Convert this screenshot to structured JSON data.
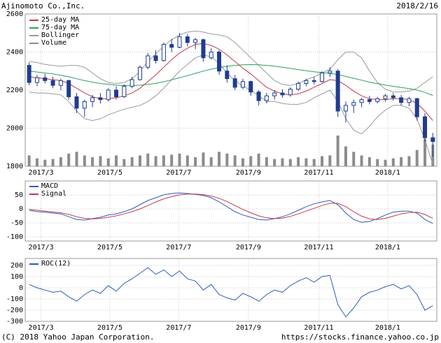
{
  "header": {
    "title": "Ajinomoto Co.,Inc.",
    "date": "2018/2/16"
  },
  "footer": {
    "copyright": "(C) 2018 Yahoo Japan Corporation.",
    "url": "https://stocks.finance.yahoo.co.jp"
  },
  "colors": {
    "candle": "#1e3d8f",
    "ma25": "#c03a4a",
    "ma75": "#2aa05f",
    "bollinger": "#999999",
    "volume": "#8c8c8c",
    "macd": "#2e5cb8",
    "signal": "#c03a4a",
    "roc": "#2e5cb8",
    "grid": "#c8c8c8",
    "border": "#999999"
  },
  "chart_data": [
    {
      "type": "candlestick",
      "panel": "price",
      "interval": "weekly",
      "ylim": [
        1800,
        2600
      ],
      "y_ticks": [
        2600,
        2400,
        2200,
        2000,
        1800
      ],
      "x_ticks": [
        {
          "label": "2017/3",
          "pos": 1.5
        },
        {
          "label": "2017/5",
          "pos": 10.2
        },
        {
          "label": "2017/7",
          "pos": 18.9
        },
        {
          "label": "2017/9",
          "pos": 27.7
        },
        {
          "label": "2017/11",
          "pos": 36.6
        },
        {
          "label": "2018/1",
          "pos": 45.3
        }
      ],
      "legend": [
        "25-day MA",
        "75-day MA",
        "Bollinger",
        "Volume"
      ],
      "candles": [
        [
          2330,
          2345,
          2225,
          2240
        ],
        [
          2240,
          2280,
          2220,
          2265
        ],
        [
          2265,
          2285,
          2235,
          2250
        ],
        [
          2250,
          2270,
          2210,
          2225
        ],
        [
          2225,
          2260,
          2200,
          2250
        ],
        [
          2250,
          2255,
          2150,
          2165
        ],
        [
          2165,
          2185,
          2080,
          2105
        ],
        [
          2105,
          2150,
          2060,
          2140
        ],
        [
          2140,
          2175,
          2110,
          2160
        ],
        [
          2160,
          2185,
          2130,
          2150
        ],
        [
          2150,
          2210,
          2140,
          2200
        ],
        [
          2200,
          2220,
          2150,
          2165
        ],
        [
          2165,
          2230,
          2160,
          2220
        ],
        [
          2220,
          2270,
          2210,
          2255
        ],
        [
          2255,
          2330,
          2250,
          2320
        ],
        [
          2320,
          2395,
          2310,
          2380
        ],
        [
          2380,
          2410,
          2340,
          2355
        ],
        [
          2355,
          2450,
          2350,
          2440
        ],
        [
          2440,
          2470,
          2400,
          2425
        ],
        [
          2425,
          2500,
          2420,
          2480
        ],
        [
          2480,
          2495,
          2430,
          2450
        ],
        [
          2450,
          2475,
          2415,
          2465
        ],
        [
          2465,
          2470,
          2350,
          2370
        ],
        [
          2370,
          2420,
          2360,
          2400
        ],
        [
          2400,
          2410,
          2280,
          2300
        ],
        [
          2300,
          2330,
          2240,
          2260
        ],
        [
          2260,
          2280,
          2200,
          2215
        ],
        [
          2215,
          2260,
          2205,
          2245
        ],
        [
          2245,
          2250,
          2170,
          2190
        ],
        [
          2190,
          2200,
          2120,
          2145
        ],
        [
          2145,
          2185,
          2130,
          2170
        ],
        [
          2170,
          2200,
          2150,
          2185
        ],
        [
          2185,
          2205,
          2160,
          2175
        ],
        [
          2175,
          2215,
          2165,
          2205
        ],
        [
          2205,
          2245,
          2195,
          2235
        ],
        [
          2235,
          2260,
          2220,
          2250
        ],
        [
          2250,
          2270,
          2230,
          2245
        ],
        [
          2245,
          2300,
          2240,
          2290
        ],
        [
          2290,
          2320,
          2270,
          2300
        ],
        [
          2300,
          2310,
          2060,
          2090
        ],
        [
          2090,
          2140,
          2030,
          2120
        ],
        [
          2120,
          2150,
          2080,
          2135
        ],
        [
          2135,
          2160,
          2110,
          2150
        ],
        [
          2150,
          2170,
          2125,
          2140
        ],
        [
          2140,
          2165,
          2130,
          2155
        ],
        [
          2155,
          2180,
          2140,
          2170
        ],
        [
          2170,
          2185,
          2145,
          2160
        ],
        [
          2160,
          2175,
          2120,
          2135
        ],
        [
          2135,
          2165,
          2115,
          2155
        ],
        [
          2155,
          2160,
          2040,
          2060
        ],
        [
          2060,
          2080,
          1930,
          1950
        ],
        [
          1950,
          1975,
          1850,
          1930
        ]
      ],
      "ma25": [
        2270,
        2265,
        2260,
        2255,
        2250,
        2235,
        2210,
        2185,
        2165,
        2155,
        2155,
        2160,
        2170,
        2185,
        2210,
        2245,
        2280,
        2320,
        2360,
        2395,
        2420,
        2440,
        2445,
        2435,
        2415,
        2385,
        2350,
        2315,
        2285,
        2250,
        2215,
        2195,
        2180,
        2175,
        2180,
        2195,
        2215,
        2235,
        2255,
        2250,
        2225,
        2195,
        2170,
        2155,
        2150,
        2150,
        2155,
        2155,
        2150,
        2130,
        2090,
        2040
      ],
      "ma75": [
        2300,
        2295,
        2290,
        2285,
        2278,
        2270,
        2260,
        2250,
        2242,
        2235,
        2230,
        2226,
        2224,
        2224,
        2226,
        2230,
        2236,
        2244,
        2254,
        2265,
        2276,
        2288,
        2300,
        2310,
        2318,
        2325,
        2330,
        2333,
        2334,
        2333,
        2330,
        2326,
        2320,
        2314,
        2308,
        2302,
        2296,
        2292,
        2288,
        2282,
        2272,
        2262,
        2252,
        2242,
        2234,
        2226,
        2220,
        2214,
        2208,
        2200,
        2188,
        2172
      ],
      "bollinger_upper": [
        2350,
        2345,
        2335,
        2330,
        2325,
        2330,
        2330,
        2320,
        2290,
        2260,
        2240,
        2235,
        2240,
        2260,
        2300,
        2350,
        2390,
        2430,
        2465,
        2490,
        2505,
        2510,
        2505,
        2495,
        2490,
        2480,
        2450,
        2410,
        2370,
        2330,
        2290,
        2250,
        2230,
        2225,
        2235,
        2255,
        2270,
        2290,
        2310,
        2360,
        2400,
        2400,
        2370,
        2300,
        2240,
        2205,
        2190,
        2190,
        2195,
        2210,
        2240,
        2270
      ],
      "bollinger_lower": [
        2190,
        2185,
        2185,
        2180,
        2175,
        2140,
        2090,
        2050,
        2040,
        2050,
        2070,
        2085,
        2100,
        2110,
        2120,
        2140,
        2170,
        2210,
        2255,
        2300,
        2335,
        2370,
        2385,
        2375,
        2340,
        2290,
        2250,
        2220,
        2200,
        2170,
        2140,
        2140,
        2130,
        2125,
        2125,
        2135,
        2160,
        2180,
        2200,
        2140,
        2050,
        1990,
        1970,
        2010,
        2060,
        2095,
        2120,
        2120,
        2105,
        2050,
        1940,
        1810
      ],
      "volume": [
        30,
        22,
        18,
        20,
        25,
        35,
        40,
        30,
        25,
        28,
        22,
        30,
        20,
        25,
        30,
        35,
        28,
        30,
        32,
        35,
        30,
        25,
        38,
        25,
        40,
        35,
        30,
        22,
        28,
        35,
        25,
        20,
        22,
        20,
        25,
        22,
        20,
        28,
        30,
        85,
        55,
        40,
        30,
        25,
        20,
        18,
        22,
        25,
        28,
        45,
        75,
        60
      ]
    },
    {
      "type": "line",
      "panel": "macd",
      "ylim": [
        -115,
        100
      ],
      "y_ticks": [
        50,
        0,
        -50,
        -100
      ],
      "legend": [
        "MACD",
        "Signal"
      ],
      "series": [
        {
          "name": "MACD",
          "values": [
            -5,
            -10,
            -12,
            -15,
            -18,
            -28,
            -38,
            -40,
            -35,
            -30,
            -22,
            -18,
            -10,
            0,
            15,
            30,
            40,
            50,
            55,
            57,
            55,
            52,
            48,
            40,
            25,
            8,
            -10,
            -22,
            -30,
            -38,
            -40,
            -35,
            -28,
            -18,
            -5,
            8,
            18,
            25,
            30,
            15,
            -15,
            -38,
            -48,
            -45,
            -35,
            -22,
            -12,
            -8,
            -8,
            -15,
            -38,
            -52
          ]
        },
        {
          "name": "Signal",
          "values": [
            -2,
            -5,
            -8,
            -11,
            -14,
            -20,
            -28,
            -34,
            -36,
            -34,
            -30,
            -25,
            -18,
            -10,
            0,
            12,
            25,
            36,
            44,
            50,
            53,
            53,
            51,
            46,
            38,
            26,
            12,
            -2,
            -14,
            -25,
            -32,
            -35,
            -33,
            -27,
            -18,
            -8,
            2,
            12,
            20,
            20,
            8,
            -10,
            -26,
            -36,
            -38,
            -34,
            -26,
            -18,
            -13,
            -12,
            -20,
            -34
          ]
        }
      ]
    },
    {
      "type": "line",
      "panel": "roc",
      "ylim": [
        -300,
        262
      ],
      "y_ticks": [
        200,
        100,
        0,
        -100,
        -200,
        -300
      ],
      "legend": [
        "ROC(12)"
      ],
      "series": [
        {
          "name": "ROC(12)",
          "values": [
            30,
            0,
            -20,
            -40,
            -30,
            -80,
            -120,
            -60,
            -20,
            -50,
            20,
            -30,
            40,
            80,
            130,
            180,
            120,
            160,
            100,
            150,
            80,
            60,
            -20,
            30,
            -60,
            -90,
            -110,
            -50,
            -80,
            -120,
            -60,
            -20,
            -40,
            20,
            60,
            90,
            50,
            100,
            110,
            -150,
            -260,
            -180,
            -80,
            -40,
            -20,
            10,
            30,
            -10,
            20,
            -60,
            -200,
            -160
          ]
        }
      ]
    }
  ]
}
